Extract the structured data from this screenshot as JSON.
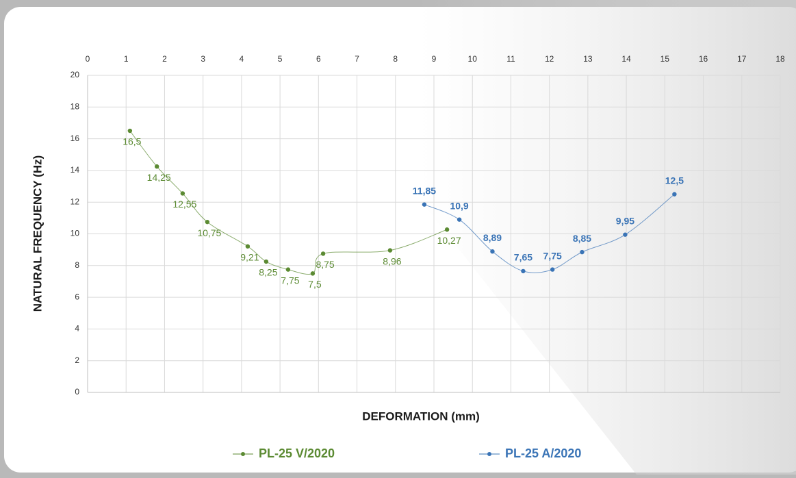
{
  "chart_data": {
    "type": "line",
    "xlabel": "DEFORMATION (mm)",
    "ylabel": "NATURAL FREQUENCY (Hz)",
    "xlim": [
      0,
      18
    ],
    "xticks": [
      0,
      1,
      2,
      3,
      4,
      5,
      6,
      7,
      8,
      9,
      10,
      11,
      12,
      13,
      14,
      15,
      16,
      17,
      18
    ],
    "ylim": [
      0,
      20
    ],
    "yticks": [
      0,
      2,
      4,
      6,
      8,
      10,
      12,
      14,
      16,
      18,
      20
    ],
    "grid": true,
    "legend": "bottom",
    "series": [
      {
        "name": "PL-25 V/2020",
        "color": "#5b8a32",
        "x": [
          1.1,
          1.8,
          2.47,
          3.11,
          4.16,
          4.64,
          5.21,
          5.85,
          6.12,
          7.86,
          9.34
        ],
        "values": [
          16.5,
          14.25,
          12.55,
          10.75,
          9.21,
          8.25,
          7.75,
          7.5,
          8.75,
          8.96,
          10.27
        ],
        "value_labels": [
          "16,5",
          "14,25",
          "12,55",
          "10,75",
          "9,21",
          "8,25",
          "7,75",
          "7,5",
          "8,75",
          "8,96",
          "10,27"
        ]
      },
      {
        "name": "PL-25 A/2020",
        "color": "#3a74b6",
        "x": [
          8.75,
          9.66,
          10.52,
          11.32,
          12.08,
          12.85,
          13.97,
          15.25
        ],
        "values": [
          11.85,
          10.9,
          8.89,
          7.65,
          7.75,
          8.85,
          9.95,
          12.5
        ],
        "value_labels": [
          "11,85",
          "10,9",
          "8,89",
          "7,65",
          "7,75",
          "8,85",
          "9,95",
          "12,5"
        ]
      }
    ]
  }
}
